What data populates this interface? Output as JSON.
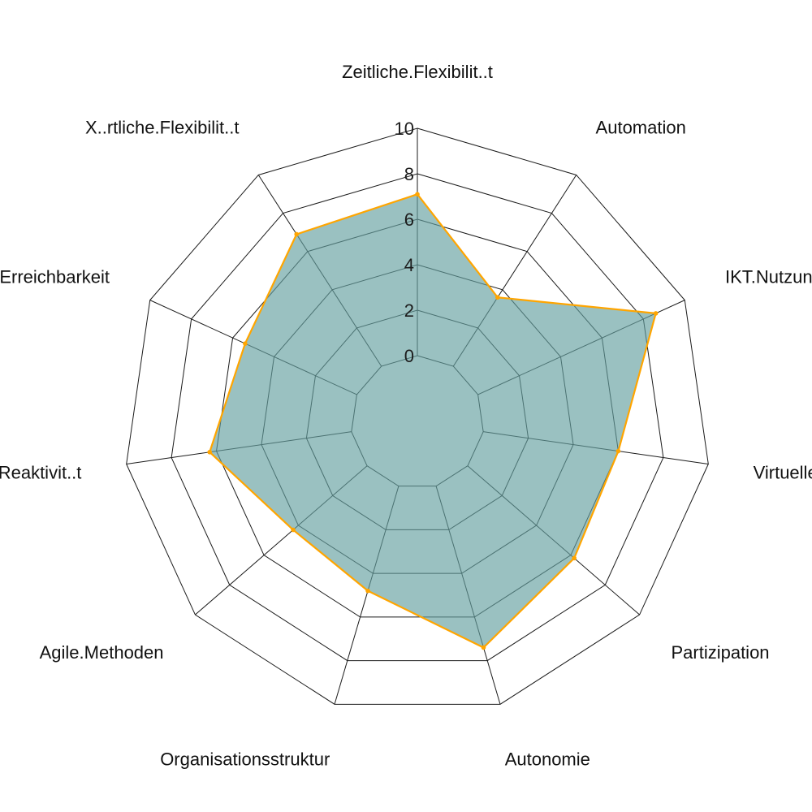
{
  "chart_data": {
    "type": "radar",
    "axes": [
      "Zeitliche.Flexibilit..t",
      "Automation",
      "IKT.Nutzung...Vernetz",
      "Virtuelle.Zusamme",
      "Partizipation",
      "Autonomie",
      "Organisationsstruktur",
      "Agile.Methoden",
      "o..Reaktivit..t",
      "Erreichbarkeit",
      "X..rtliche.Flexibilit..t"
    ],
    "series": [
      {
        "values": [
          7.1,
          3.6,
          8.6,
          6.0,
          6.2,
          7.4,
          4.8,
          4.3,
          6.3,
          5.4,
          6.9
        ]
      }
    ],
    "rlim": [
      0,
      10
    ],
    "ticks": [
      "0",
      "2",
      "4",
      "6",
      "8",
      "10"
    ],
    "grid": true,
    "colors": {
      "fill": "#64a0a0",
      "line": "#ffa500",
      "grid": "#1b1b1b"
    }
  }
}
